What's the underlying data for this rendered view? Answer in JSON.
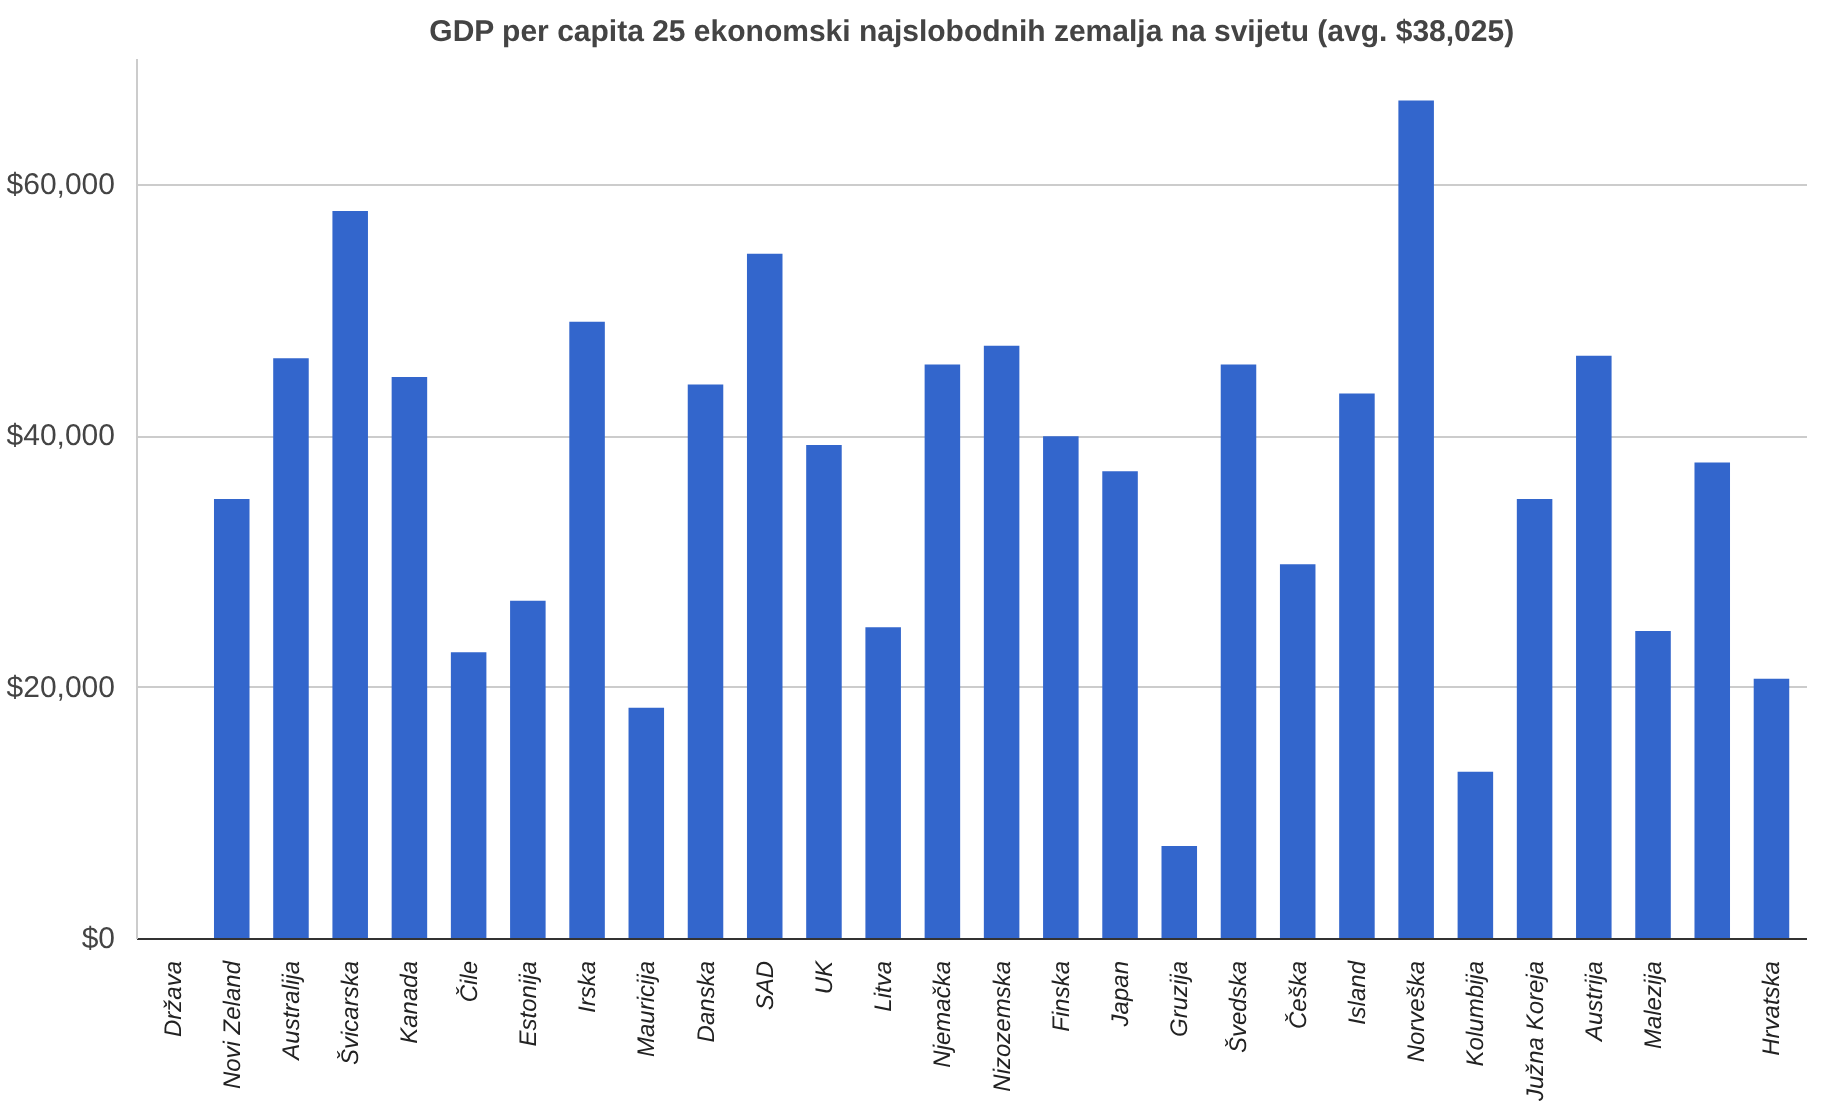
{
  "chart_data": {
    "type": "bar",
    "title": "GDP per capita 25 ekonomski najslobodnih zemalja na svijetu (avg. $38,025)",
    "categories": [
      "Država",
      "Novi Zeland",
      "Australija",
      "Švicarska",
      "Kanada",
      "Čile",
      "Estonija",
      "Irska",
      "Mauricija",
      "Danska",
      "SAD",
      "UK",
      "Litva",
      "Njemačka",
      "Nizozemska",
      "Finska",
      "Japan",
      "Gruzija",
      "Švedska",
      "Češka",
      "Island",
      "Norveška",
      "Kolumbija",
      "Južna Koreja",
      "Austrija",
      "Malezija",
      null,
      "Hrvatska"
    ],
    "values": [
      null,
      35000,
      46200,
      57900,
      44700,
      22800,
      26900,
      49100,
      18400,
      44100,
      54500,
      39300,
      24800,
      45700,
      47200,
      40000,
      37200,
      7400,
      45700,
      29800,
      43400,
      66700,
      13300,
      35000,
      46400,
      24500,
      37900,
      20700
    ],
    "color": "#3366cc",
    "ylim": [
      0,
      70000
    ],
    "yticks": [
      {
        "value": 0,
        "label": "$0"
      },
      {
        "value": 20000,
        "label": "$20,000"
      },
      {
        "value": 40000,
        "label": "$40,000"
      },
      {
        "value": 60000,
        "label": "$60,000"
      }
    ],
    "grid": "y"
  }
}
